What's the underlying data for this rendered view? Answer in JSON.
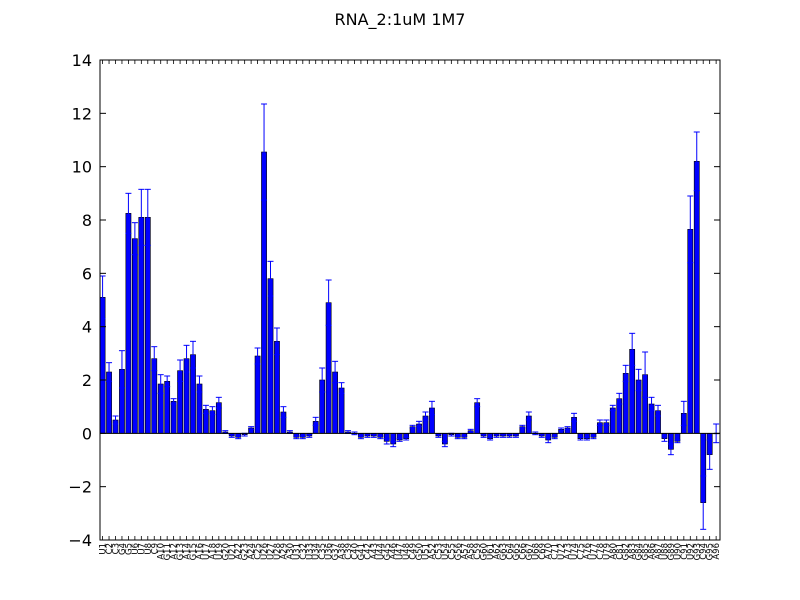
{
  "chart_data": {
    "type": "bar",
    "title": "RNA_2:1uM  1M7",
    "xlabel": "",
    "ylabel": "",
    "ylim": [
      -4,
      14
    ],
    "yticks": [
      -4,
      -2,
      0,
      2,
      4,
      6,
      8,
      10,
      12,
      14
    ],
    "ytick_labels": [
      "−4",
      "−2",
      "0",
      "2",
      "4",
      "6",
      "8",
      "10",
      "12",
      "14"
    ],
    "grid": false,
    "legend": "none",
    "bar_color": "#0000ff",
    "error_color": "#0000ff",
    "categories": [
      "U1",
      "C2",
      "C3",
      "G4",
      "G5",
      "U6",
      "U7",
      "U8",
      "C9",
      "A10",
      "G11",
      "A12",
      "G13",
      "A14",
      "G15",
      "A16",
      "U17",
      "A18",
      "U19",
      "G20",
      "U21",
      "A22",
      "G23",
      "A24",
      "C25",
      "U26",
      "U27",
      "U28",
      "A29",
      "A30",
      "U31",
      "C32",
      "U33",
      "U34",
      "C35",
      "U36",
      "G37",
      "A38",
      "C39",
      "C40",
      "G41",
      "C42",
      "A43",
      "U44",
      "G45",
      "A46",
      "U47",
      "U48",
      "C49",
      "G50",
      "U51",
      "A52",
      "C53",
      "U54",
      "C55",
      "G56",
      "A57",
      "A58",
      "C59",
      "G60",
      "U61",
      "A62",
      "G63",
      "C64",
      "G65",
      "C66",
      "G67",
      "U68",
      "C69",
      "A70",
      "C71",
      "U72",
      "A73",
      "U74",
      "C75",
      "A76",
      "U77",
      "C78",
      "U79",
      "A80",
      "C81",
      "G82",
      "A83",
      "G84",
      "G85",
      "A86",
      "A87",
      "U88",
      "G89",
      "U90",
      "C91",
      "U92",
      "G93",
      "C94",
      "G95",
      "A96"
    ],
    "values": [
      5.1,
      2.3,
      0.5,
      2.4,
      8.25,
      7.3,
      8.1,
      8.1,
      2.8,
      1.85,
      1.95,
      1.2,
      2.35,
      2.8,
      2.95,
      1.85,
      0.9,
      0.85,
      1.15,
      0.05,
      -0.1,
      -0.15,
      -0.05,
      0.2,
      2.9,
      10.55,
      5.8,
      3.45,
      0.8,
      0.05,
      -0.15,
      -0.15,
      -0.1,
      0.45,
      2.0,
      4.9,
      2.3,
      1.7,
      0.05,
      0.0,
      -0.15,
      -0.1,
      -0.1,
      -0.15,
      -0.3,
      -0.4,
      -0.25,
      -0.2,
      0.25,
      0.35,
      0.65,
      0.95,
      -0.1,
      -0.4,
      -0.05,
      -0.15,
      -0.15,
      0.1,
      1.15,
      -0.1,
      -0.2,
      -0.1,
      -0.1,
      -0.1,
      -0.1,
      0.25,
      0.65,
      0.0,
      -0.1,
      -0.25,
      -0.15,
      0.15,
      0.2,
      0.6,
      -0.2,
      -0.2,
      -0.15,
      0.4,
      0.4,
      0.95,
      1.3,
      2.25,
      3.15,
      2.0,
      2.2,
      1.1,
      0.85,
      -0.2,
      -0.6,
      -0.3,
      0.75,
      7.65,
      10.2,
      -2.6,
      -0.8,
      0.0
    ],
    "errors": [
      0.8,
      0.35,
      0.15,
      0.7,
      0.75,
      0.6,
      1.05,
      1.05,
      0.45,
      0.35,
      0.2,
      0.1,
      0.4,
      0.5,
      0.5,
      0.3,
      0.15,
      0.15,
      0.2,
      0.05,
      0.05,
      0.05,
      0.05,
      0.05,
      0.3,
      1.8,
      0.65,
      0.5,
      0.2,
      0.05,
      0.05,
      0.05,
      0.05,
      0.15,
      0.45,
      0.85,
      0.4,
      0.2,
      0.05,
      0.05,
      0.05,
      0.05,
      0.05,
      0.05,
      0.1,
      0.1,
      0.05,
      0.05,
      0.05,
      0.1,
      0.15,
      0.25,
      0.05,
      0.1,
      0.05,
      0.05,
      0.05,
      0.05,
      0.15,
      0.05,
      0.05,
      0.05,
      0.05,
      0.05,
      0.05,
      0.05,
      0.15,
      0.05,
      0.05,
      0.1,
      0.05,
      0.05,
      0.05,
      0.15,
      0.05,
      0.05,
      0.05,
      0.1,
      0.1,
      0.1,
      0.2,
      0.3,
      0.6,
      0.4,
      0.85,
      0.25,
      0.2,
      0.1,
      0.2,
      0.05,
      0.45,
      1.25,
      1.1,
      1.0,
      0.55,
      0.35
    ]
  }
}
